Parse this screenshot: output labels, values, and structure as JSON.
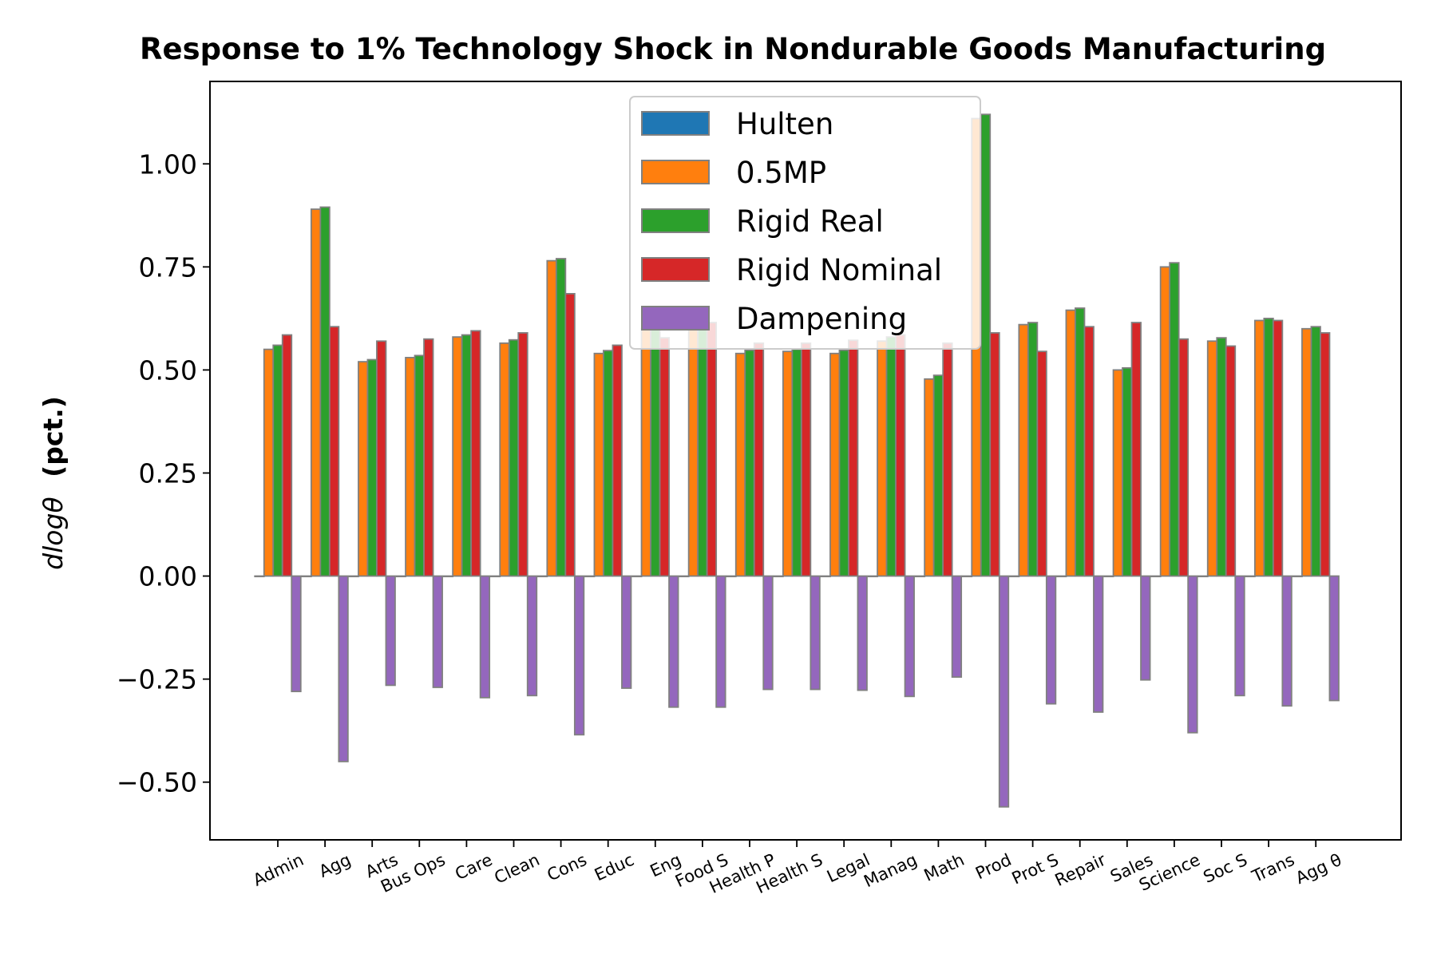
{
  "chart_data": {
    "type": "bar",
    "title": "Response to 1% Technology Shock in Nondurable Goods Manufacturing",
    "xlabel": "",
    "ylabel_math": "dlogθ",
    "ylabel_unit": "(pct.)",
    "ylim": [
      -0.64,
      1.2
    ],
    "yticks": [
      -0.5,
      -0.25,
      0.0,
      0.25,
      0.5,
      0.75,
      1.0
    ],
    "ytick_labels": [
      "−0.50",
      "−0.25",
      "0.00",
      "0.25",
      "0.50",
      "0.75",
      "1.00"
    ],
    "grid": false,
    "legend_position": "top-center",
    "categories": [
      "Admin",
      "Agg",
      "Arts",
      "Bus Ops",
      "Care",
      "Clean",
      "Cons",
      "Educ",
      "Eng",
      "Food S",
      "Health P",
      "Health S",
      "Legal",
      "Manag",
      "Math",
      "Prod",
      "Prot S",
      "Repair",
      "Sales",
      "Science",
      "Soc S",
      "Trans",
      "Agg θ"
    ],
    "series": [
      {
        "name": "Hulten",
        "color": "#1f77b4",
        "values": [
          0,
          0,
          0,
          0,
          0,
          0,
          0,
          0,
          0,
          0,
          0,
          0,
          0,
          0,
          0,
          0,
          0,
          0,
          0,
          0,
          0,
          0,
          0
        ]
      },
      {
        "name": "0.5MP",
        "color": "#ff7f0e",
        "values": [
          0.55,
          0.89,
          0.52,
          0.53,
          0.58,
          0.565,
          0.765,
          0.54,
          0.6,
          0.62,
          0.54,
          0.545,
          0.54,
          0.57,
          0.478,
          1.11,
          0.61,
          0.645,
          0.5,
          0.75,
          0.57,
          0.62,
          0.6
        ]
      },
      {
        "name": "Rigid Real",
        "color": "#2ca02c",
        "values": [
          0.56,
          0.895,
          0.525,
          0.535,
          0.585,
          0.573,
          0.77,
          0.547,
          0.61,
          0.63,
          0.548,
          0.55,
          0.548,
          0.58,
          0.487,
          1.12,
          0.615,
          0.65,
          0.505,
          0.76,
          0.578,
          0.625,
          0.605
        ]
      },
      {
        "name": "Rigid Nominal",
        "color": "#d62728",
        "values": [
          0.585,
          0.605,
          0.57,
          0.575,
          0.595,
          0.59,
          0.685,
          0.56,
          0.578,
          0.615,
          0.565,
          0.565,
          0.572,
          0.585,
          0.565,
          0.59,
          0.545,
          0.605,
          0.615,
          0.575,
          0.558,
          0.62,
          0.59
        ]
      },
      {
        "name": "Dampening",
        "color": "#9467bd",
        "values": [
          -0.28,
          -0.45,
          -0.265,
          -0.27,
          -0.295,
          -0.29,
          -0.385,
          -0.272,
          -0.318,
          -0.318,
          -0.275,
          -0.275,
          -0.277,
          -0.292,
          -0.245,
          -0.56,
          -0.31,
          -0.33,
          -0.252,
          -0.38,
          -0.29,
          -0.315,
          -0.302
        ]
      }
    ]
  }
}
